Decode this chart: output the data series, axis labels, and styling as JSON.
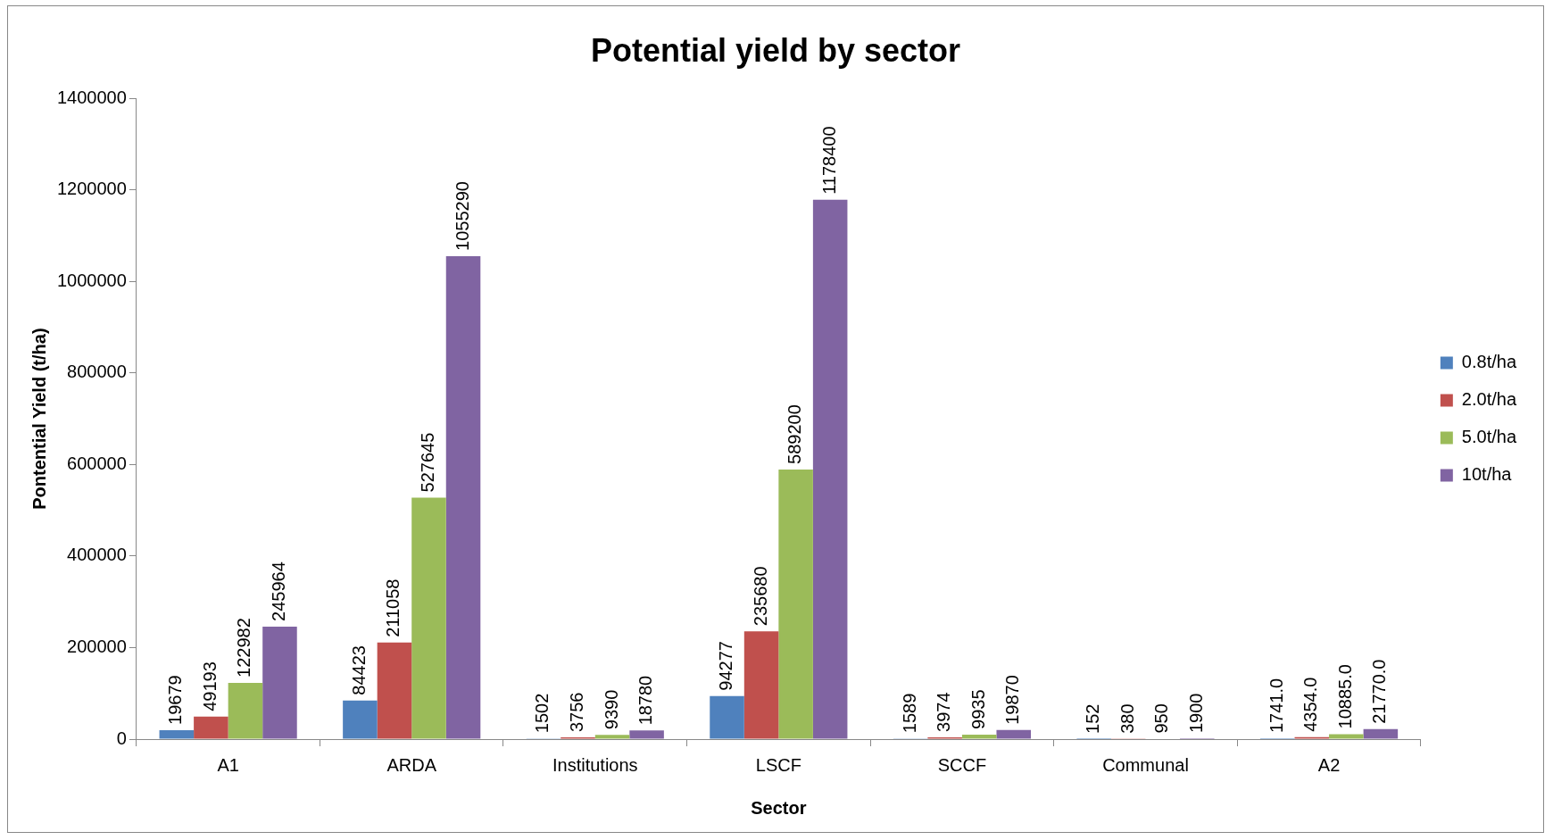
{
  "chart_data": {
    "type": "bar",
    "title": "Potential yield by sector",
    "xlabel": "Sector",
    "ylabel": "Pontential Yield (t/ha)",
    "categories": [
      "A1",
      "ARDA",
      "Institutions",
      "LSCF",
      "SCCF",
      "Communal",
      "A2"
    ],
    "ylim": [
      0,
      1400000
    ],
    "yticks": [
      0,
      200000,
      400000,
      600000,
      800000,
      1000000,
      1200000,
      1400000
    ],
    "legend": "right",
    "series": [
      {
        "name": "0.8t/ha",
        "color": "#4f81bd",
        "values": [
          19679,
          84423,
          1502,
          94277,
          1589,
          152,
          1741.0
        ],
        "value_labels": [
          "19679",
          "84423",
          "1502",
          "94277",
          "1589",
          "152",
          "1741.0"
        ]
      },
      {
        "name": "2.0t/ha",
        "color": "#c0504d",
        "values": [
          49193,
          211058,
          3756,
          235680,
          3974,
          380,
          4354.0
        ],
        "value_labels": [
          "49193",
          "211058",
          "3756",
          "235680",
          "3974",
          "380",
          "4354.0"
        ]
      },
      {
        "name": "5.0t/ha",
        "color": "#9bbb59",
        "values": [
          122982,
          527645,
          9390,
          589200,
          9935,
          950,
          10885.0
        ],
        "value_labels": [
          "122982",
          "527645",
          "9390",
          "589200",
          "9935",
          "950",
          "10885.0"
        ]
      },
      {
        "name": "10t/ha",
        "color": "#8064a2",
        "values": [
          245964,
          1055290,
          18780,
          1178400,
          19870,
          1900,
          21770.0
        ],
        "value_labels": [
          "245964",
          "1055290",
          "18780",
          "1178400",
          "19870",
          "1900",
          "21770.0"
        ]
      }
    ]
  }
}
